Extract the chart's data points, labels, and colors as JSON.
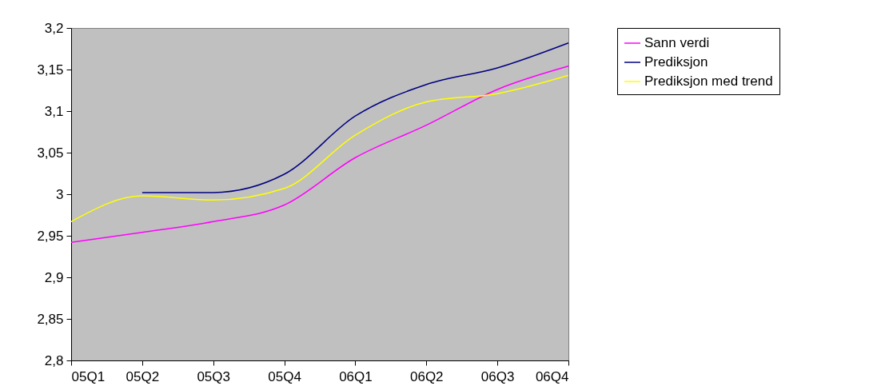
{
  "chart_data": {
    "type": "line",
    "categories": [
      "05Q1",
      "05Q2",
      "05Q3",
      "05Q4",
      "06Q1",
      "06Q2",
      "06Q3",
      "06Q4"
    ],
    "series": [
      {
        "name": "Sann verdi",
        "color": "#ff00ff",
        "values": [
          2.942,
          2.954,
          2.967,
          2.987,
          3.044,
          3.083,
          3.126,
          3.154
        ]
      },
      {
        "name": "Prediksjon",
        "color": "#000080",
        "values": [
          null,
          3.002,
          3.002,
          3.024,
          3.094,
          3.132,
          3.152,
          3.182
        ]
      },
      {
        "name": "Prediksjon med trend",
        "color": "#ffff00",
        "values": [
          2.967,
          2.998,
          2.993,
          3.007,
          3.071,
          3.111,
          3.121,
          3.143
        ]
      }
    ],
    "ylim": [
      2.8,
      3.2
    ],
    "yticks": [
      {
        "value": 2.8,
        "label": "2,8"
      },
      {
        "value": 2.85,
        "label": "2,85"
      },
      {
        "value": 2.9,
        "label": "2,9"
      },
      {
        "value": 2.95,
        "label": "2,95"
      },
      {
        "value": 3,
        "label": "3"
      },
      {
        "value": 3.05,
        "label": "3,05"
      },
      {
        "value": 3.1,
        "label": "3,1"
      },
      {
        "value": 3.15,
        "label": "3,15"
      },
      {
        "value": 3.2,
        "label": "3,2"
      }
    ],
    "grid": false,
    "legend": "right",
    "marker": "none",
    "line_style": "solid"
  }
}
